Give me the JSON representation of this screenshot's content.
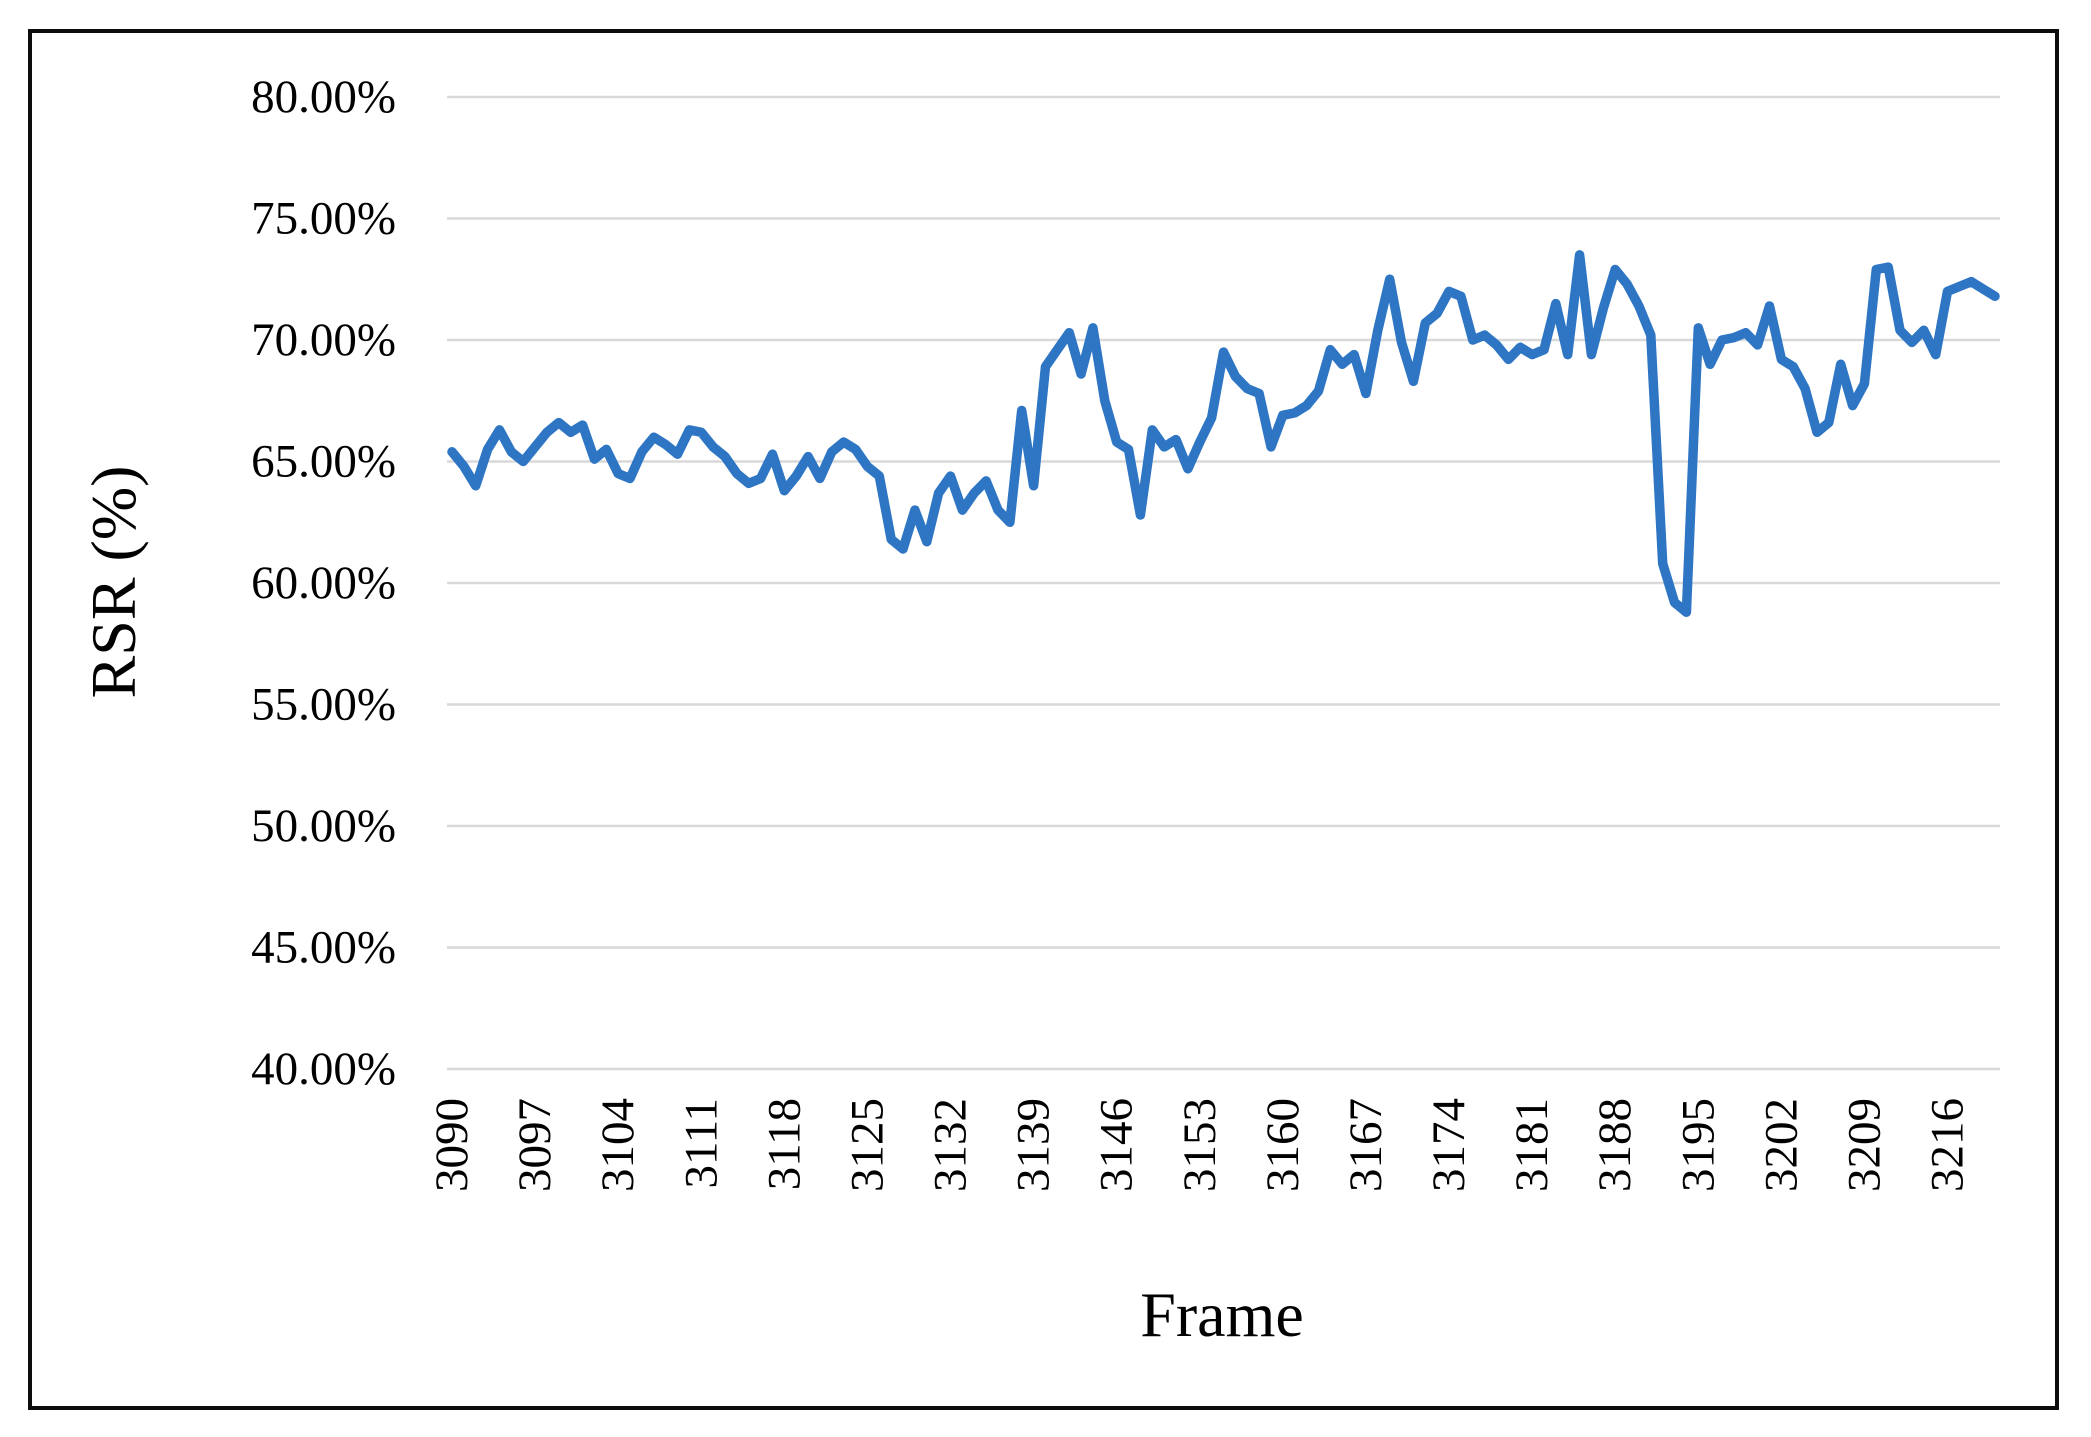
{
  "figure": {
    "background": "#ffffff",
    "border_color": "#0d0d0d",
    "grid_color": "#d9d9d9",
    "text_color": "#000000"
  },
  "chart_data": {
    "type": "line",
    "title": "",
    "xlabel": "Frame",
    "ylabel": "RSR (%)",
    "ylim": [
      40,
      80
    ],
    "y_tick_step": 5,
    "y_tick_labels": [
      "40.00%",
      "45.00%",
      "50.00%",
      "55.00%",
      "60.00%",
      "65.00%",
      "70.00%",
      "75.00%",
      "80.00%"
    ],
    "x_tick_labels": [
      "3090",
      "3097",
      "3104",
      "3111",
      "3118",
      "3125",
      "3132",
      "3139",
      "3146",
      "3153",
      "3160",
      "3167",
      "3174",
      "3181",
      "3188",
      "3195",
      "3202",
      "3209",
      "3216"
    ],
    "x_start": 3090,
    "x_step": 1,
    "x_end": 3220,
    "grid": true,
    "legend_position": "none",
    "line_color": "#2e75c4",
    "values": [
      65.4,
      64.8,
      64.0,
      65.5,
      66.3,
      65.4,
      65.0,
      65.6,
      66.2,
      66.6,
      66.2,
      66.5,
      65.1,
      65.5,
      64.5,
      64.3,
      65.4,
      66.0,
      65.7,
      65.3,
      66.3,
      66.2,
      65.6,
      65.2,
      64.5,
      64.1,
      64.3,
      65.3,
      63.8,
      64.4,
      65.2,
      64.3,
      65.4,
      65.8,
      65.5,
      64.8,
      64.4,
      61.8,
      61.4,
      63.0,
      61.7,
      63.7,
      64.4,
      63.0,
      63.7,
      64.2,
      63.0,
      62.5,
      67.1,
      64.0,
      68.9,
      69.6,
      70.3,
      68.6,
      70.5,
      67.5,
      65.8,
      65.5,
      62.8,
      66.3,
      65.6,
      65.9,
      64.7,
      65.8,
      66.8,
      69.5,
      68.5,
      68.0,
      67.8,
      65.6,
      66.9,
      67.0,
      67.3,
      67.9,
      69.6,
      69.0,
      69.4,
      67.8,
      70.4,
      72.5,
      69.9,
      68.3,
      70.7,
      71.1,
      72.0,
      71.8,
      70.0,
      70.2,
      69.8,
      69.2,
      69.7,
      69.4,
      69.6,
      71.5,
      69.4,
      73.5,
      69.4,
      71.3,
      72.9,
      72.3,
      71.4,
      70.2,
      60.8,
      59.2,
      58.8,
      70.5,
      69.0,
      70.0,
      70.1,
      70.3,
      69.8,
      71.4,
      69.2,
      68.9,
      68.0,
      66.2,
      66.6,
      69.0,
      67.3,
      68.2,
      72.9,
      73.0,
      70.4,
      69.9,
      70.4,
      69.4,
      72.0,
      72.2,
      72.4,
      72.1,
      71.8
    ]
  }
}
